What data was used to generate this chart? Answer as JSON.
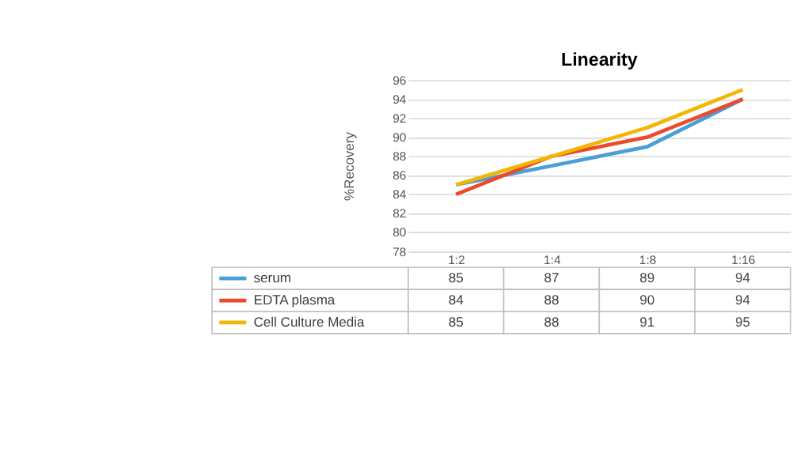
{
  "chart_data": {
    "type": "line",
    "title": "Linearity",
    "ylabel": "%Recovery",
    "categories": [
      "1:2",
      "1:4",
      "1:8",
      "1:16"
    ],
    "series": [
      {
        "name": "serum",
        "color": "#4a9fd8",
        "values": [
          85,
          87,
          89,
          94
        ]
      },
      {
        "name": "EDTA plasma",
        "color": "#ec4a2c",
        "values": [
          84,
          88,
          90,
          94
        ]
      },
      {
        "name": "Cell Culture Media",
        "color": "#f2b705",
        "values": [
          85,
          88,
          91,
          95
        ]
      }
    ],
    "ylim": [
      78,
      96
    ],
    "yticks": [
      78,
      80,
      82,
      84,
      86,
      88,
      90,
      92,
      94,
      96
    ],
    "grid": "y",
    "data_labels": true,
    "legend": "bottom",
    "marker": "none",
    "line_style": "solid"
  }
}
